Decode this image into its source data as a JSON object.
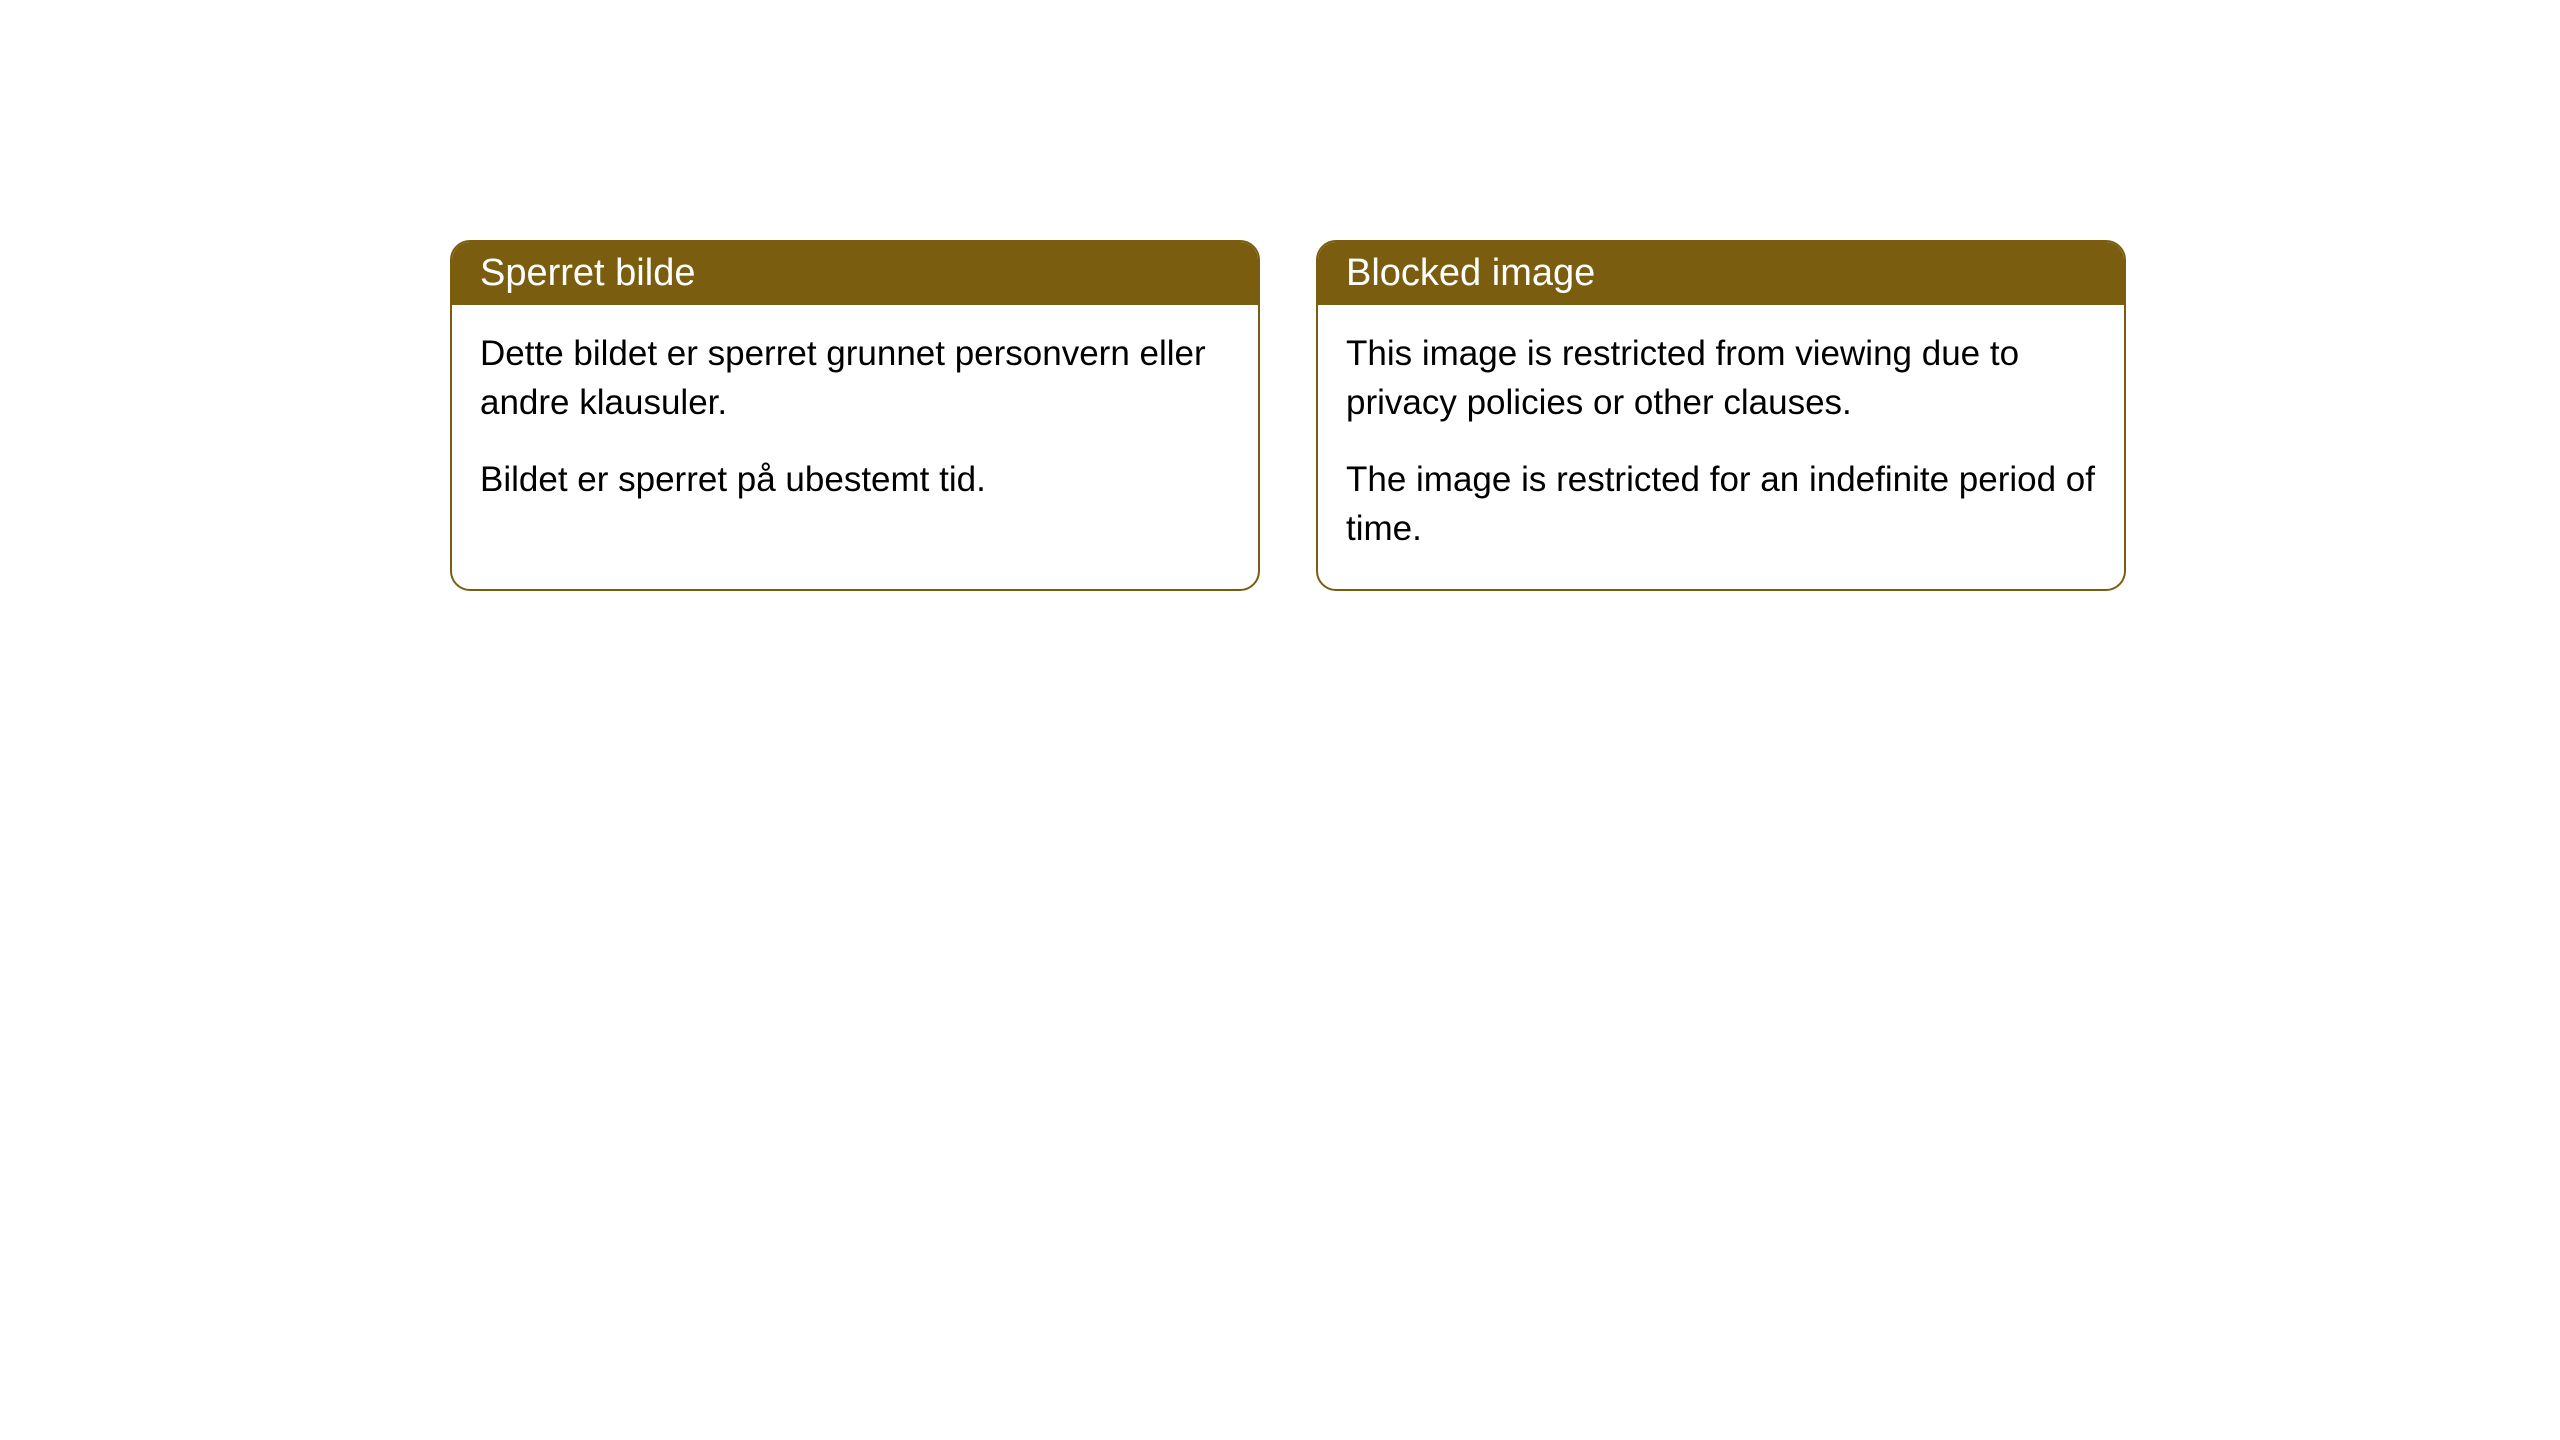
{
  "cards": [
    {
      "title": "Sperret bilde",
      "paragraph1": "Dette bildet er sperret grunnet personvern eller andre klausuler.",
      "paragraph2": "Bildet er sperret på ubestemt tid."
    },
    {
      "title": "Blocked image",
      "paragraph1": "This image is restricted from viewing due to privacy policies or other clauses.",
      "paragraph2": "The image is restricted for an indefinite period of time."
    }
  ],
  "styling": {
    "header_bg_color": "#7a5d0e",
    "header_text_color": "#ffffff",
    "border_color": "#7a5d0e",
    "body_bg_color": "#ffffff",
    "body_text_color": "#000000",
    "border_radius": 20,
    "title_fontsize": 38,
    "body_fontsize": 35
  }
}
